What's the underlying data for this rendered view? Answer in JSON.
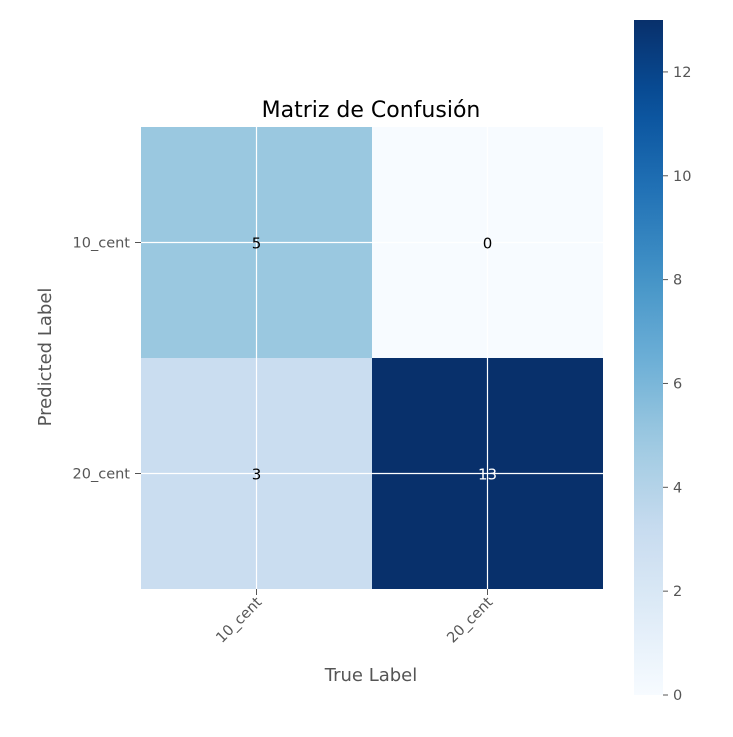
{
  "chart_data": {
    "type": "heatmap",
    "title": "Matriz de Confusión",
    "xlabel": "True Label",
    "ylabel": "Predicted Label",
    "x_categories": [
      "10_cent",
      "20_cent"
    ],
    "y_categories": [
      "10_cent",
      "20_cent"
    ],
    "values": [
      [
        5,
        0
      ],
      [
        3,
        13
      ]
    ],
    "colormap": "Blues",
    "colorbar": {
      "min": 0,
      "max": 13,
      "ticks": [
        0,
        2,
        4,
        6,
        8,
        10,
        12
      ]
    },
    "grid": true
  }
}
